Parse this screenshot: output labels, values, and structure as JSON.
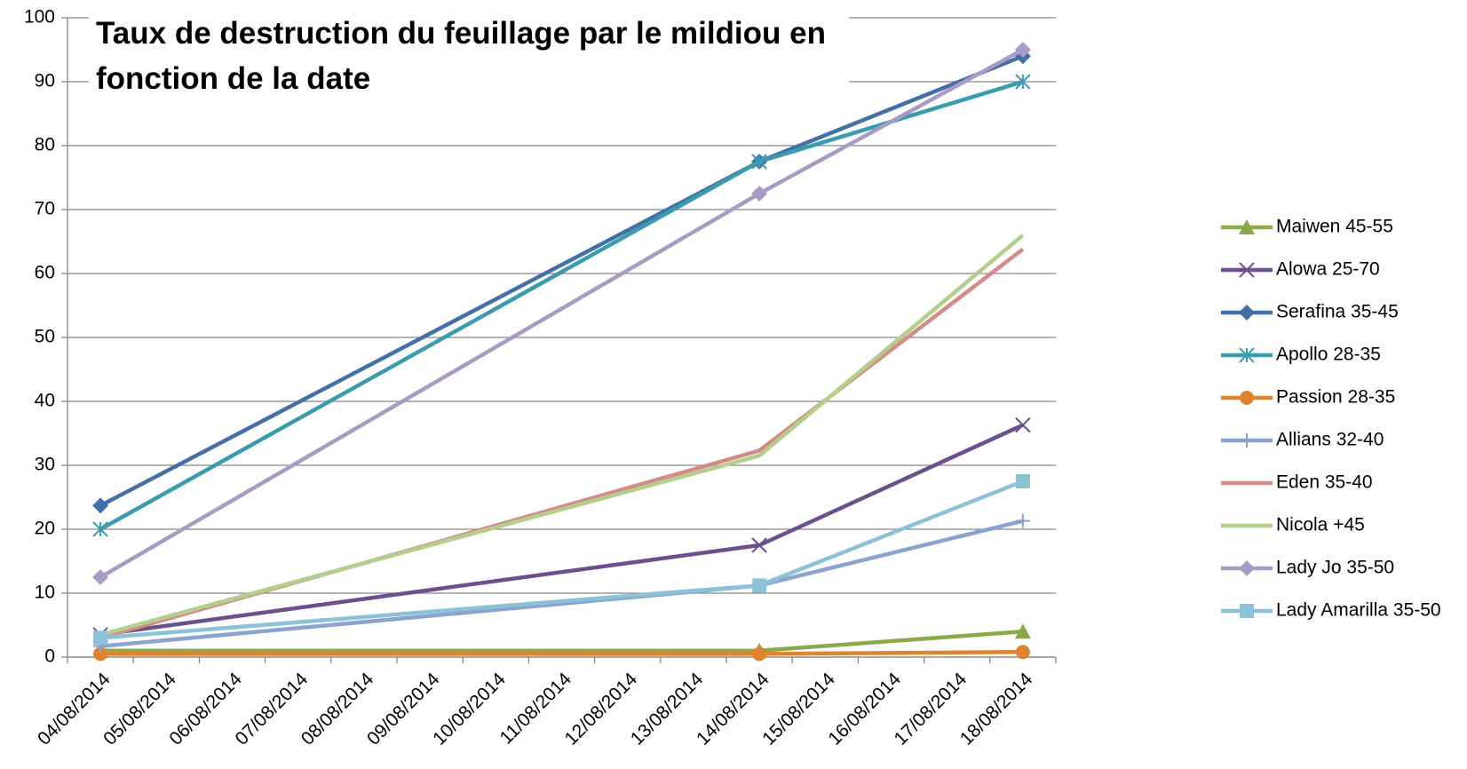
{
  "chart_data": {
    "type": "line",
    "title": "Taux de destruction du feuillage par le mildiou en fonction de la date",
    "x": [
      "04/08/2014",
      "14/08/2014",
      "18/08/2014"
    ],
    "xticks": [
      "04/08/2014",
      "05/08/2014",
      "06/08/2014",
      "07/08/2014",
      "08/08/2014",
      "09/08/2014",
      "10/08/2014",
      "11/08/2014",
      "12/08/2014",
      "13/08/2014",
      "14/08/2014",
      "15/08/2014",
      "16/08/2014",
      "17/08/2014",
      "18/08/2014"
    ],
    "ylim": [
      0,
      100
    ],
    "yticks": [
      0,
      10,
      20,
      30,
      40,
      50,
      60,
      70,
      80,
      90,
      100
    ],
    "grid": true,
    "legend": "right",
    "series": [
      {
        "name": "Maiwen 45-55",
        "color": "#8aaa4a",
        "marker": "triangle",
        "values": [
          1,
          1,
          4
        ]
      },
      {
        "name": "Alowa 25-70",
        "color": "#6b4f8f",
        "marker": "x",
        "values": [
          3.5,
          17.5,
          36.3
        ]
      },
      {
        "name": "Serafina 35-45",
        "color": "#4270a8",
        "marker": "diamond",
        "values": [
          23.7,
          77.5,
          94
        ]
      },
      {
        "name": "Apollo 28-35",
        "color": "#3a9bae",
        "marker": "asterisk",
        "values": [
          20,
          77.5,
          90
        ]
      },
      {
        "name": "Passion 28-35",
        "color": "#e0832e",
        "marker": "circle",
        "values": [
          0.5,
          0.5,
          0.8
        ]
      },
      {
        "name": "Allians 32-40",
        "color": "#8ba3d0",
        "marker": "plus",
        "values": [
          1.7,
          11.2,
          21.3
        ]
      },
      {
        "name": "Eden 35-40",
        "color": "#d48a87",
        "marker": "none",
        "values": [
          3,
          32.3,
          63.8
        ]
      },
      {
        "name": "Nicola +45",
        "color": "#b2cf8c",
        "marker": "none",
        "values": [
          3.5,
          31.5,
          66
        ]
      },
      {
        "name": "Lady Jo 35-50",
        "color": "#aa9bc6",
        "marker": "diamond",
        "values": [
          12.5,
          72.5,
          95
        ]
      },
      {
        "name": "Lady Amarilla 35-50",
        "color": "#8cc2d8",
        "marker": "square",
        "values": [
          3,
          11.2,
          27.5
        ]
      }
    ]
  }
}
